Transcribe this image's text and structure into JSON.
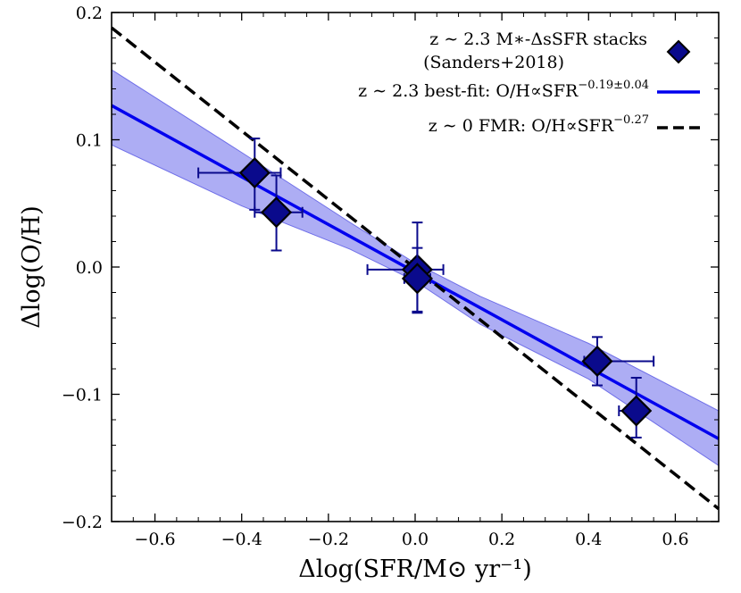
{
  "chart_data": {
    "type": "scatter",
    "xlabel": "Δlog(SFR/M⊙ yr⁻¹)",
    "ylabel": "Δlog(O/H)",
    "xlim": [
      -0.7,
      0.7
    ],
    "ylim": [
      -0.2,
      0.2
    ],
    "x_ticks": [
      -0.6,
      -0.4,
      -0.2,
      0.0,
      0.2,
      0.4,
      0.6
    ],
    "x_tick_labels": [
      "−0.6",
      "−0.4",
      "−0.2",
      "0.0",
      "0.2",
      "0.4",
      "0.6"
    ],
    "y_ticks": [
      -0.2,
      -0.1,
      0.0,
      0.1,
      0.2
    ],
    "y_tick_labels": [
      "−0.2",
      "−0.1",
      "0.0",
      "0.1",
      "0.2"
    ],
    "grid": false,
    "legend_position": "top-right",
    "series": [
      {
        "name": "z ∼ 2.3 M*-ΔsSFR stacks (Sanders+2018)",
        "kind": "points-with-errorbars",
        "marker": "diamond",
        "color": "#0a0a8c",
        "points": [
          {
            "x": -0.37,
            "y": 0.074,
            "xerr": [
              0.13,
              0.06
            ],
            "yerr": [
              0.029,
              0.027
            ]
          },
          {
            "x": -0.32,
            "y": 0.043,
            "xerr": [
              0.05,
              0.06
            ],
            "yerr": [
              0.03,
              0.029
            ]
          },
          {
            "x": 0.005,
            "y": -0.002,
            "xerr": [
              0.115,
              0.06
            ],
            "yerr": [
              0.033,
              0.037
            ]
          },
          {
            "x": 0.005,
            "y": -0.009,
            "xerr": [
              0.03,
              0.03
            ],
            "yerr": [
              0.027,
              0.024
            ]
          },
          {
            "x": 0.42,
            "y": -0.074,
            "xerr": [
              0.03,
              0.13
            ],
            "yerr": [
              0.019,
              0.019
            ]
          },
          {
            "x": 0.51,
            "y": -0.113,
            "xerr": [
              0.04,
              0.02
            ],
            "yerr": [
              0.021,
              0.026
            ]
          }
        ]
      },
      {
        "name": "z ∼ 2.3 best-fit: O/H∝SFR^(−0.19±0.04)",
        "kind": "line",
        "color": "#0000ee",
        "slope": -0.187,
        "intercept": -0.004,
        "band_color": "#8a8af0",
        "band_x": [
          -0.7,
          -0.4,
          -0.15,
          0.0,
          0.15,
          0.4,
          0.7
        ],
        "band_upper": [
          0.155,
          0.09,
          0.035,
          0.003,
          -0.023,
          -0.06,
          -0.113
        ],
        "band_lower": [
          0.096,
          0.048,
          0.014,
          -0.011,
          -0.045,
          -0.088,
          -0.156
        ]
      },
      {
        "name": "z ∼ 0 FMR: O/H∝SFR^(−0.27)",
        "kind": "line",
        "style": "dashed",
        "color": "#000000",
        "slope": -0.27,
        "intercept": -0.001
      }
    ],
    "legend": [
      {
        "line1": "z ∼ 2.3 M∗-ΔsSFR stacks",
        "line2": "(Sanders+2018)"
      },
      {
        "text": "z ∼ 2.3 best-fit: O/H∝SFR",
        "sup": "−0.19±0.04"
      },
      {
        "text": "z ∼ 0 FMR: O/H∝SFR",
        "sup": "−0.27"
      }
    ]
  }
}
